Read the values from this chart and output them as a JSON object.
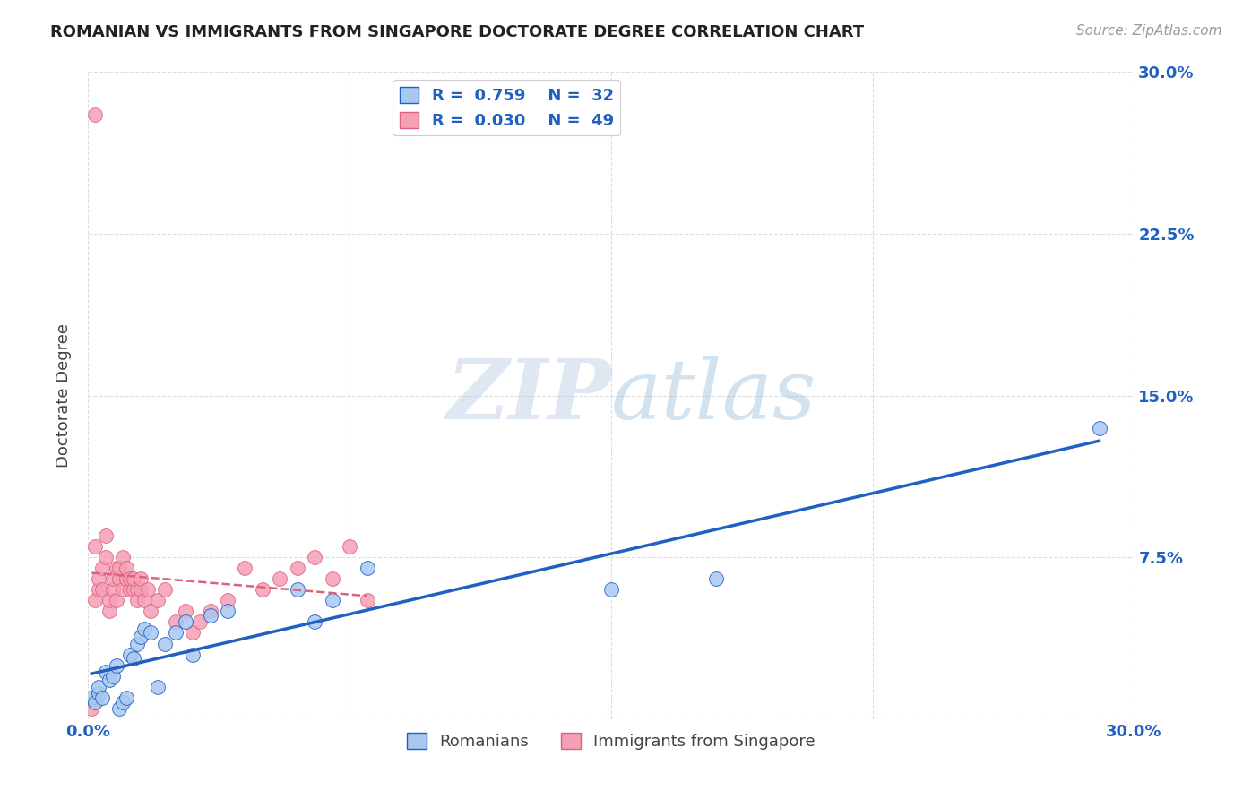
{
  "title": "ROMANIAN VS IMMIGRANTS FROM SINGAPORE DOCTORATE DEGREE CORRELATION CHART",
  "source": "Source: ZipAtlas.com",
  "ylabel": "Doctorate Degree",
  "xlim": [
    0.0,
    0.3
  ],
  "ylim": [
    0.0,
    0.3
  ],
  "ytick_positions": [
    0.0,
    0.075,
    0.15,
    0.225,
    0.3
  ],
  "ytick_labels": [
    "",
    "7.5%",
    "15.0%",
    "22.5%",
    "30.0%"
  ],
  "grid_color": "#dddddd",
  "background_color": "#ffffff",
  "romanians_color": "#a8c8f0",
  "singapore_color": "#f4a0b5",
  "romanians_line_color": "#2060c0",
  "singapore_line_color": "#e06080",
  "legend_R_romanians": "0.759",
  "legend_N_romanians": "32",
  "legend_R_singapore": "0.030",
  "legend_N_singapore": "49",
  "watermark_zip": "ZIP",
  "watermark_atlas": "atlas",
  "romanians_x": [
    0.001,
    0.002,
    0.003,
    0.003,
    0.004,
    0.005,
    0.006,
    0.007,
    0.008,
    0.009,
    0.01,
    0.011,
    0.012,
    0.013,
    0.014,
    0.015,
    0.016,
    0.018,
    0.02,
    0.022,
    0.025,
    0.028,
    0.03,
    0.035,
    0.04,
    0.06,
    0.065,
    0.07,
    0.08,
    0.15,
    0.18,
    0.29
  ],
  "romanians_y": [
    0.01,
    0.008,
    0.012,
    0.015,
    0.01,
    0.022,
    0.018,
    0.02,
    0.025,
    0.005,
    0.008,
    0.01,
    0.03,
    0.028,
    0.035,
    0.038,
    0.042,
    0.04,
    0.015,
    0.035,
    0.04,
    0.045,
    0.03,
    0.048,
    0.05,
    0.06,
    0.045,
    0.055,
    0.07,
    0.06,
    0.065,
    0.135
  ],
  "singapore_x": [
    0.001,
    0.002,
    0.002,
    0.003,
    0.003,
    0.004,
    0.004,
    0.005,
    0.005,
    0.006,
    0.006,
    0.007,
    0.007,
    0.008,
    0.008,
    0.009,
    0.009,
    0.01,
    0.01,
    0.011,
    0.011,
    0.012,
    0.012,
    0.013,
    0.013,
    0.014,
    0.014,
    0.015,
    0.015,
    0.016,
    0.017,
    0.018,
    0.02,
    0.022,
    0.025,
    0.028,
    0.03,
    0.032,
    0.035,
    0.04,
    0.045,
    0.05,
    0.055,
    0.06,
    0.065,
    0.07,
    0.075,
    0.08,
    0.002
  ],
  "singapore_y": [
    0.005,
    0.055,
    0.08,
    0.06,
    0.065,
    0.06,
    0.07,
    0.075,
    0.085,
    0.05,
    0.055,
    0.06,
    0.065,
    0.07,
    0.055,
    0.065,
    0.07,
    0.075,
    0.06,
    0.065,
    0.07,
    0.06,
    0.065,
    0.06,
    0.065,
    0.06,
    0.055,
    0.06,
    0.065,
    0.055,
    0.06,
    0.05,
    0.055,
    0.06,
    0.045,
    0.05,
    0.04,
    0.045,
    0.05,
    0.055,
    0.07,
    0.06,
    0.065,
    0.07,
    0.075,
    0.065,
    0.08,
    0.055,
    0.28
  ]
}
